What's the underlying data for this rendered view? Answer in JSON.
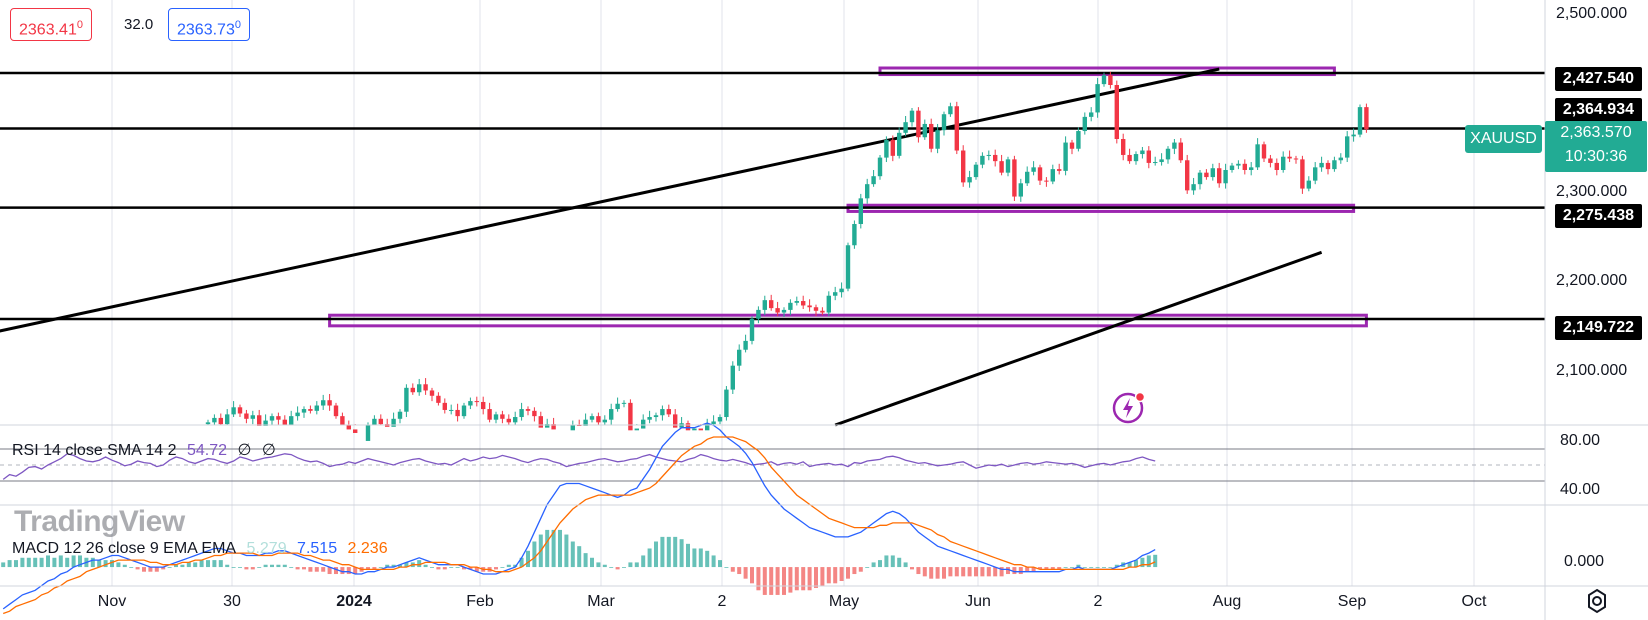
{
  "toolbar": {
    "bid": "2363.41",
    "bid_sup": "0",
    "spread": "32.0",
    "ask": "2363.73",
    "ask_sup": "0"
  },
  "symbol": "XAUUSD",
  "last_price": "2,363.570",
  "countdown": "10:30:36",
  "colors": {
    "up": "#22ab94",
    "down": "#f23645",
    "zone": "#9c27b0",
    "level_line": "#000000",
    "rsi": "#7e57c2",
    "macd": "#2962ff",
    "signal": "#ff6d00"
  },
  "logo_text": "TradingView",
  "icons": [
    "flash-icon",
    "settings-gear-icon"
  ],
  "rsi_legend": {
    "title": "RSI 14 close SMA 14 2",
    "value": "54.72",
    "na1": "∅",
    "na2": "∅"
  },
  "macd_legend": {
    "title": "MACD 12 26 close 9 EMA EMA",
    "hist": "5.279",
    "macd": "7.515",
    "signal": "2.236"
  },
  "price_tags": {
    "t1": "2,427.540",
    "t2": "2,364.934",
    "t3": "2,275.438",
    "t4": "2,149.722"
  },
  "price_scale": [
    "2,500.000",
    "2,300.000",
    "2,200.000",
    "2,100.000"
  ],
  "rsi_scale": [
    "80.00",
    "40.00"
  ],
  "macd_scale": [
    "0.000"
  ],
  "time_axis": [
    "Nov",
    "30",
    "2024",
    "Feb",
    "Mar",
    "2",
    "May",
    "Jun",
    "2",
    "Aug",
    "Sep",
    "Oct"
  ],
  "chart_data": {
    "type": "candlestick",
    "symbol": "XAUUSD",
    "timeframe": "daily",
    "ylim": [
      2030,
      2510
    ],
    "levels": [
      2427.54,
      2364.934,
      2275.438,
      2149.722
    ],
    "zones": [
      {
        "from_index": 105,
        "to_index": 176,
        "low": 2425.8,
        "high": 2433.2
      },
      {
        "from_index": 100,
        "to_index": 179,
        "low": 2271.2,
        "high": 2278.2
      },
      {
        "from_index": 19,
        "to_index": 181,
        "low": 2142.0,
        "high": 2154.0
      }
    ],
    "trendlines": [
      {
        "from": [
          -90,
          2047
        ],
        "to": [
          158,
          2432
        ]
      },
      {
        "from": [
          98,
          2030
        ],
        "to": [
          174,
          2225
        ]
      }
    ],
    "closes": [
      2033,
      2038,
      2031,
      2042,
      2050,
      2043,
      2037,
      2041,
      2029,
      2035,
      2040,
      2036,
      2030,
      2040,
      2044,
      2048,
      2046,
      2052,
      2058,
      2052,
      2040,
      2030,
      2025,
      2021,
      2012,
      2030,
      2037,
      2031,
      2028,
      2037,
      2045,
      2072,
      2067,
      2076,
      2069,
      2063,
      2055,
      2047,
      2047,
      2040,
      2052,
      2057,
      2056,
      2048,
      2036,
      2042,
      2037,
      2033,
      2039,
      2048,
      2046,
      2040,
      2027,
      2031,
      2025,
      2020,
      2024,
      2030,
      2029,
      2036,
      2040,
      2033,
      2036,
      2048,
      2054,
      2055,
      2024,
      2026,
      2036,
      2039,
      2041,
      2048,
      2042,
      2027,
      2032,
      2024,
      2026,
      2024,
      2031,
      2034,
      2039,
      2070,
      2097,
      2115,
      2125,
      2150,
      2160,
      2171,
      2162,
      2157,
      2160,
      2168,
      2170,
      2165,
      2163,
      2159,
      2157,
      2176,
      2180,
      2184,
      2233,
      2257,
      2286,
      2302,
      2311,
      2332,
      2352,
      2334,
      2360,
      2372,
      2385,
      2355,
      2370,
      2342,
      2363,
      2381,
      2390,
      2340,
      2304,
      2310,
      2324,
      2334,
      2335,
      2328,
      2315,
      2330,
      2288,
      2303,
      2316,
      2321,
      2306,
      2305,
      2319,
      2317,
      2349,
      2342,
      2362,
      2378,
      2383,
      2415,
      2425,
      2414,
      2353,
      2335,
      2328,
      2336,
      2340,
      2326,
      2327,
      2330,
      2342,
      2349,
      2329,
      2295,
      2302,
      2315,
      2310,
      2320,
      2303,
      2318,
      2323,
      2325,
      2318,
      2321,
      2347,
      2331,
      2326,
      2318,
      2333,
      2331,
      2330,
      2297,
      2306,
      2321,
      2326,
      2319,
      2329,
      2332,
      2356,
      2358,
      2389,
      2364
    ],
    "rsi": [
      32,
      38,
      36,
      41,
      47,
      48,
      45,
      50,
      54,
      58,
      64,
      62,
      58,
      55,
      54,
      56,
      60,
      56,
      53,
      49,
      51,
      55,
      53,
      52,
      48,
      50,
      56,
      60,
      58,
      54,
      52,
      55,
      58,
      57,
      54,
      52,
      55,
      60,
      58,
      55,
      57,
      59,
      60,
      62,
      64,
      63,
      59,
      56,
      54,
      55,
      52,
      48,
      50,
      51,
      54,
      52,
      55,
      58,
      56,
      54,
      52,
      50,
      53,
      55,
      57,
      58,
      55,
      53,
      51,
      52,
      50,
      54,
      58,
      55,
      57,
      60,
      58,
      59,
      62,
      60,
      58,
      55,
      53,
      56,
      58,
      57,
      54,
      52,
      48,
      50,
      52,
      53,
      55,
      57,
      58,
      56,
      54,
      55,
      57,
      58,
      61,
      63,
      60,
      58,
      56,
      55,
      54,
      57,
      59,
      63,
      61,
      58,
      56,
      55,
      57,
      55,
      53,
      50,
      51,
      52,
      54,
      50,
      52,
      53,
      51,
      54,
      48,
      50,
      51,
      52,
      50,
      51,
      48,
      53,
      52,
      55,
      56,
      57,
      60,
      61,
      59,
      56,
      54,
      52,
      53,
      51,
      49,
      50,
      51,
      53,
      54,
      50,
      46,
      48,
      50,
      49,
      51,
      48,
      50,
      52,
      53,
      51,
      52,
      54,
      53,
      52,
      51,
      52,
      50,
      47,
      49,
      51,
      52,
      50,
      52,
      54,
      55,
      58,
      60,
      57,
      55
    ],
    "macd": [
      -18,
      -16,
      -14,
      -12,
      -11,
      -10,
      -8,
      -6,
      -5,
      -3,
      -2,
      0,
      1,
      2,
      3,
      3,
      4,
      5,
      5,
      4,
      3,
      2,
      1,
      0,
      0,
      0,
      1,
      2,
      3,
      4,
      5,
      6,
      7,
      8,
      8,
      7,
      6,
      6,
      5,
      5,
      5,
      6,
      6,
      7,
      7,
      6,
      5,
      4,
      3,
      2,
      1,
      0,
      -1,
      -2,
      -2,
      -3,
      -3,
      -2,
      -2,
      -1,
      0,
      0,
      1,
      2,
      3,
      4,
      3,
      2,
      1,
      1,
      1,
      1,
      0,
      -1,
      -2,
      -3,
      -3,
      -3,
      -2,
      -1,
      0,
      4,
      9,
      15,
      21,
      27,
      31,
      35,
      36,
      36,
      36,
      35,
      34,
      33,
      32,
      31,
      30,
      31,
      33,
      34,
      38,
      42,
      47,
      52,
      55,
      58,
      60,
      60,
      60,
      61,
      62,
      61,
      59,
      56,
      54,
      52,
      49,
      45,
      40,
      35,
      31,
      28,
      25,
      23,
      21,
      19,
      17,
      16,
      15,
      14,
      13,
      13,
      13,
      14,
      15,
      17,
      19,
      21,
      23,
      24,
      23,
      21,
      18,
      15,
      13,
      11,
      9,
      8,
      7,
      6,
      5,
      4,
      3,
      2,
      1,
      0,
      -1,
      -1,
      -2,
      -2,
      -2,
      -2,
      -2,
      -2,
      -2,
      -2,
      -1,
      -1,
      0,
      -1,
      -1,
      -1,
      -1,
      -1,
      0,
      1,
      2,
      3,
      5,
      6,
      7.515
    ],
    "signal": [
      -20,
      -19,
      -17,
      -16,
      -15,
      -14,
      -12,
      -11,
      -9,
      -8,
      -6,
      -5,
      -4,
      -2,
      -1,
      0,
      1,
      2,
      3,
      3,
      3,
      3,
      3,
      2,
      2,
      1,
      1,
      1,
      2,
      2,
      3,
      3,
      4,
      5,
      5,
      6,
      6,
      6,
      6,
      6,
      5,
      5,
      5,
      6,
      6,
      6,
      6,
      5,
      5,
      4,
      3,
      3,
      2,
      1,
      1,
      0,
      -1,
      -1,
      -1,
      -1,
      -1,
      -1,
      0,
      0,
      1,
      1,
      2,
      2,
      2,
      2,
      1,
      1,
      1,
      0,
      0,
      -1,
      -1,
      -2,
      -2,
      -2,
      -1,
      0,
      2,
      4,
      7,
      11,
      15,
      19,
      22,
      25,
      27,
      29,
      30,
      31,
      31,
      31,
      31,
      31,
      31,
      32,
      33,
      34,
      36,
      39,
      42,
      45,
      48,
      50,
      52,
      53,
      55,
      56,
      56,
      56,
      56,
      55,
      54,
      52,
      50,
      47,
      43,
      40,
      37,
      34,
      31,
      29,
      27,
      25,
      23,
      21,
      20,
      19,
      18,
      17,
      17,
      17,
      17,
      18,
      18,
      19,
      19,
      19,
      19,
      18,
      17,
      16,
      14,
      13,
      11,
      10,
      9,
      8,
      7,
      6,
      5,
      4,
      3,
      2,
      1,
      1,
      0,
      0,
      -1,
      -1,
      -1,
      -1,
      -1,
      -1,
      -1,
      -1,
      -1,
      -1,
      -1,
      -1,
      -1,
      -1,
      0,
      0,
      1,
      1,
      2.236
    ],
    "rsi_ylim": [
      0,
      100
    ],
    "macd_ylim": [
      -6,
      25
    ]
  }
}
